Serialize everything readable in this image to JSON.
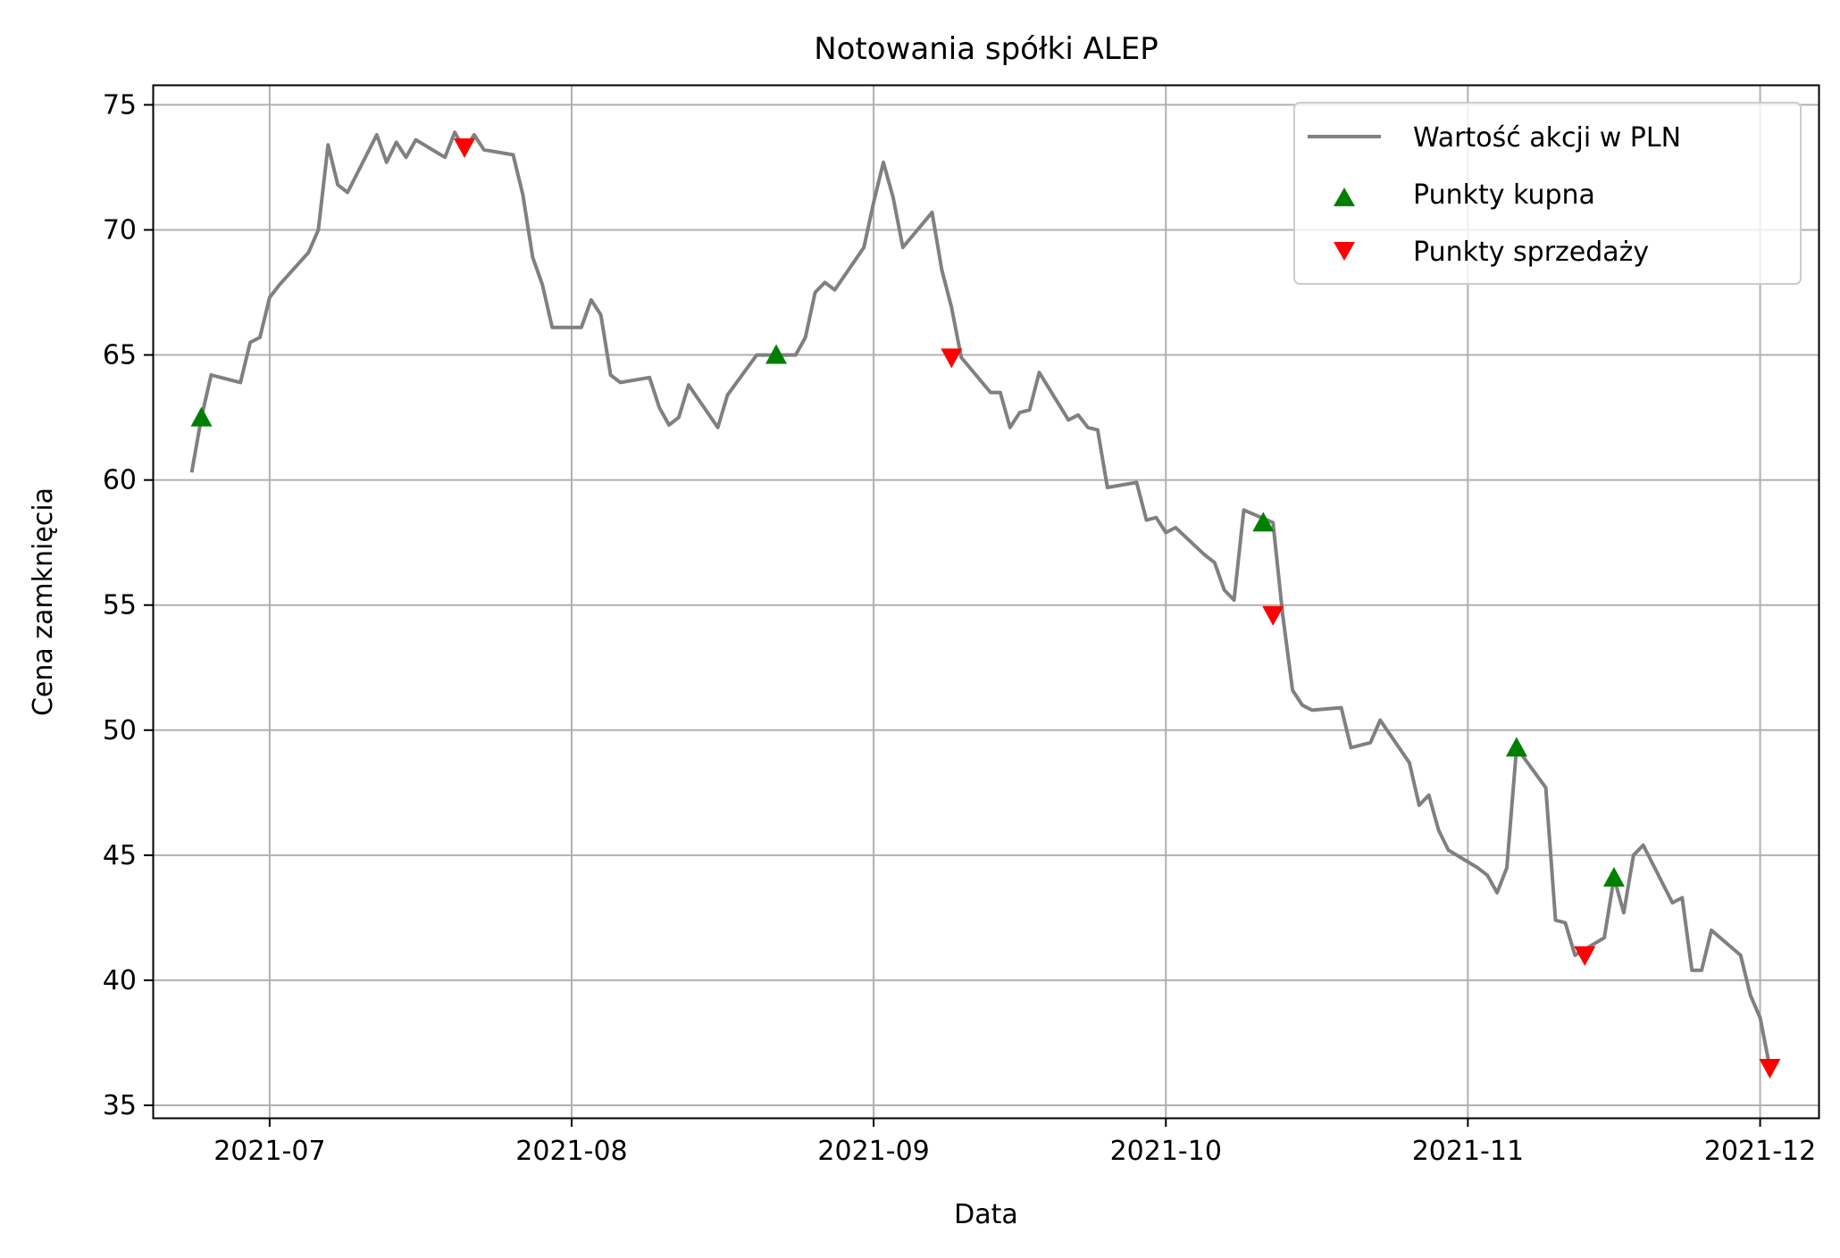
{
  "chart_data": {
    "type": "line",
    "title": "Notowania spółki ALEP",
    "xlabel": "Data",
    "ylabel": "Cena zamknięcia",
    "ylim": [
      34.5,
      75.8
    ],
    "xlim": [
      "2021-06-19",
      "2021-12-07"
    ],
    "grid": true,
    "legend_position": "top-right",
    "x_ticks": [
      "2021-07-01",
      "2021-08-01",
      "2021-09-01",
      "2021-10-01",
      "2021-11-01",
      "2021-12-01"
    ],
    "x_tick_labels": [
      "2021-07",
      "2021-08",
      "2021-09",
      "2021-10",
      "2021-11",
      "2021-12"
    ],
    "y_ticks": [
      35,
      40,
      45,
      50,
      55,
      60,
      65,
      70,
      75
    ],
    "y_tick_labels": [
      "35",
      "40",
      "45",
      "50",
      "55",
      "60",
      "65",
      "70",
      "75"
    ],
    "series": [
      {
        "name": "Wartość akcji w PLN",
        "kind": "line",
        "color": "#808080",
        "points": [
          [
            "2021-06-23",
            60.3
          ],
          [
            "2021-06-24",
            62.5
          ],
          [
            "2021-06-25",
            64.2
          ],
          [
            "2021-06-28",
            63.9
          ],
          [
            "2021-06-29",
            65.5
          ],
          [
            "2021-06-30",
            65.7
          ],
          [
            "2021-07-01",
            67.3
          ],
          [
            "2021-07-02",
            67.8
          ],
          [
            "2021-07-05",
            69.1
          ],
          [
            "2021-07-06",
            70.0
          ],
          [
            "2021-07-07",
            73.4
          ],
          [
            "2021-07-08",
            71.8
          ],
          [
            "2021-07-09",
            71.5
          ],
          [
            "2021-07-12",
            73.8
          ],
          [
            "2021-07-13",
            72.7
          ],
          [
            "2021-07-14",
            73.5
          ],
          [
            "2021-07-15",
            72.9
          ],
          [
            "2021-07-16",
            73.6
          ],
          [
            "2021-07-19",
            72.9
          ],
          [
            "2021-07-20",
            73.9
          ],
          [
            "2021-07-21",
            73.2
          ],
          [
            "2021-07-22",
            73.8
          ],
          [
            "2021-07-23",
            73.2
          ],
          [
            "2021-07-26",
            73.0
          ],
          [
            "2021-07-27",
            71.4
          ],
          [
            "2021-07-28",
            68.9
          ],
          [
            "2021-07-29",
            67.8
          ],
          [
            "2021-07-30",
            66.1
          ],
          [
            "2021-08-02",
            66.1
          ],
          [
            "2021-08-03",
            67.2
          ],
          [
            "2021-08-04",
            66.6
          ],
          [
            "2021-08-05",
            64.2
          ],
          [
            "2021-08-06",
            63.9
          ],
          [
            "2021-08-09",
            64.1
          ],
          [
            "2021-08-10",
            62.9
          ],
          [
            "2021-08-11",
            62.2
          ],
          [
            "2021-08-12",
            62.5
          ],
          [
            "2021-08-13",
            63.8
          ],
          [
            "2021-08-16",
            62.1
          ],
          [
            "2021-08-17",
            63.4
          ],
          [
            "2021-08-20",
            65.0
          ],
          [
            "2021-08-23",
            65.0
          ],
          [
            "2021-08-24",
            65.0
          ],
          [
            "2021-08-25",
            65.7
          ],
          [
            "2021-08-26",
            67.5
          ],
          [
            "2021-08-27",
            67.9
          ],
          [
            "2021-08-28",
            67.6
          ],
          [
            "2021-08-31",
            69.3
          ],
          [
            "2021-09-01",
            71.1
          ],
          [
            "2021-09-02",
            72.7
          ],
          [
            "2021-09-03",
            71.3
          ],
          [
            "2021-09-04",
            69.3
          ],
          [
            "2021-09-07",
            70.7
          ],
          [
            "2021-09-08",
            68.4
          ],
          [
            "2021-09-09",
            66.9
          ],
          [
            "2021-09-10",
            64.9
          ],
          [
            "2021-09-13",
            63.5
          ],
          [
            "2021-09-14",
            63.5
          ],
          [
            "2021-09-15",
            62.1
          ],
          [
            "2021-09-16",
            62.7
          ],
          [
            "2021-09-17",
            62.8
          ],
          [
            "2021-09-18",
            64.3
          ],
          [
            "2021-09-21",
            62.4
          ],
          [
            "2021-09-22",
            62.6
          ],
          [
            "2021-09-23",
            62.1
          ],
          [
            "2021-09-24",
            62.0
          ],
          [
            "2021-09-25",
            59.7
          ],
          [
            "2021-09-28",
            59.9
          ],
          [
            "2021-09-29",
            58.4
          ],
          [
            "2021-09-30",
            58.5
          ],
          [
            "2021-10-01",
            57.9
          ],
          [
            "2021-10-02",
            58.1
          ],
          [
            "2021-10-05",
            57.0
          ],
          [
            "2021-10-06",
            56.7
          ],
          [
            "2021-10-07",
            55.6
          ],
          [
            "2021-10-08",
            55.2
          ],
          [
            "2021-10-09",
            58.8
          ],
          [
            "2021-10-12",
            58.3
          ],
          [
            "2021-10-13",
            54.6
          ],
          [
            "2021-10-14",
            51.6
          ],
          [
            "2021-10-15",
            51.0
          ],
          [
            "2021-10-16",
            50.8
          ],
          [
            "2021-10-19",
            50.9
          ],
          [
            "2021-10-20",
            49.3
          ],
          [
            "2021-10-21",
            49.4
          ],
          [
            "2021-10-22",
            49.5
          ],
          [
            "2021-10-23",
            50.4
          ],
          [
            "2021-10-26",
            48.7
          ],
          [
            "2021-10-27",
            47.0
          ],
          [
            "2021-10-28",
            47.4
          ],
          [
            "2021-10-29",
            46.0
          ],
          [
            "2021-10-30",
            45.2
          ],
          [
            "2021-11-02",
            44.5
          ],
          [
            "2021-11-03",
            44.2
          ],
          [
            "2021-11-04",
            43.5
          ],
          [
            "2021-11-05",
            44.5
          ],
          [
            "2021-11-06",
            49.3
          ],
          [
            "2021-11-09",
            47.7
          ],
          [
            "2021-11-10",
            42.4
          ],
          [
            "2021-11-11",
            42.3
          ],
          [
            "2021-11-12",
            41.0
          ],
          [
            "2021-11-15",
            41.7
          ],
          [
            "2021-11-16",
            44.1
          ],
          [
            "2021-11-17",
            42.7
          ],
          [
            "2021-11-18",
            45.0
          ],
          [
            "2021-11-19",
            45.4
          ],
          [
            "2021-11-22",
            43.1
          ],
          [
            "2021-11-23",
            43.3
          ],
          [
            "2021-11-24",
            40.4
          ],
          [
            "2021-11-25",
            40.4
          ],
          [
            "2021-11-26",
            42.0
          ],
          [
            "2021-11-29",
            41.0
          ],
          [
            "2021-11-30",
            39.4
          ],
          [
            "2021-12-01",
            38.5
          ],
          [
            "2021-12-02",
            36.5
          ]
        ]
      },
      {
        "name": "Punkty kupna",
        "kind": "marker-up",
        "color": "#008000",
        "points": [
          [
            "2021-06-24",
            62.5
          ],
          [
            "2021-08-22",
            65.0
          ],
          [
            "2021-10-11",
            58.3
          ],
          [
            "2021-11-06",
            49.3
          ],
          [
            "2021-11-16",
            44.1
          ]
        ]
      },
      {
        "name": "Punkty sprzedaży",
        "kind": "marker-down",
        "color": "#ff0000",
        "points": [
          [
            "2021-07-21",
            73.3
          ],
          [
            "2021-09-09",
            64.9
          ],
          [
            "2021-10-12",
            54.6
          ],
          [
            "2021-11-13",
            41.0
          ],
          [
            "2021-12-02",
            36.5
          ]
        ]
      }
    ]
  }
}
